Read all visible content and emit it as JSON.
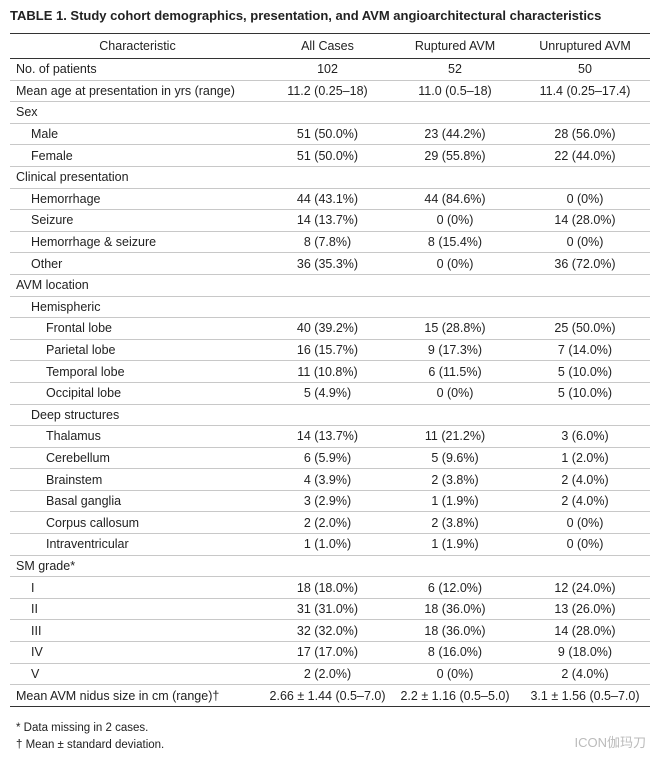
{
  "title": "TABLE 1. Study cohort demographics, presentation, and AVM angioarchitectural characteristics",
  "table": {
    "columns": [
      "Characteristic",
      "All Cases",
      "Ruptured AVM",
      "Unruptured AVM"
    ],
    "rows": [
      [
        "No. of patients",
        "102",
        "52",
        "50"
      ],
      [
        "Mean age at presentation in yrs (range)",
        "11.2 (0.25–18)",
        "11.0 (0.5–18)",
        "11.4 (0.25–17.4)"
      ],
      [
        "Sex"
      ],
      [
        "Male",
        "51 (50.0%)",
        "23 (44.2%)",
        "28 (56.0%)"
      ],
      [
        "Female",
        "51 (50.0%)",
        "29 (55.8%)",
        "22 (44.0%)"
      ],
      [
        "Clinical presentation"
      ],
      [
        "Hemorrhage",
        "44 (43.1%)",
        "44 (84.6%)",
        "0 (0%)"
      ],
      [
        "Seizure",
        "14 (13.7%)",
        "0 (0%)",
        "14 (28.0%)"
      ],
      [
        "Hemorrhage & seizure",
        "8 (7.8%)",
        "8 (15.4%)",
        "0 (0%)"
      ],
      [
        "Other",
        "36 (35.3%)",
        "0 (0%)",
        "36 (72.0%)"
      ],
      [
        "AVM location"
      ],
      [
        "Hemispheric"
      ],
      [
        "Frontal lobe",
        "40 (39.2%)",
        "15 (28.8%)",
        "25 (50.0%)"
      ],
      [
        "Parietal lobe",
        "16 (15.7%)",
        "9 (17.3%)",
        "7 (14.0%)"
      ],
      [
        "Temporal lobe",
        "11 (10.8%)",
        "6 (11.5%)",
        "5 (10.0%)"
      ],
      [
        "Occipital lobe",
        "5 (4.9%)",
        "0 (0%)",
        "5 (10.0%)"
      ],
      [
        "Deep structures"
      ],
      [
        "Thalamus",
        "14 (13.7%)",
        "11 (21.2%)",
        "3 (6.0%)"
      ],
      [
        "Cerebellum",
        "6 (5.9%)",
        "5 (9.6%)",
        "1 (2.0%)"
      ],
      [
        "Brainstem",
        "4 (3.9%)",
        "2 (3.8%)",
        "2 (4.0%)"
      ],
      [
        "Basal ganglia",
        "3 (2.9%)",
        "1 (1.9%)",
        "2 (4.0%)"
      ],
      [
        "Corpus callosum",
        "2 (2.0%)",
        "2 (3.8%)",
        "0 (0%)"
      ],
      [
        "Intraventricular",
        "1 (1.0%)",
        "1 (1.9%)",
        "0 (0%)"
      ],
      [
        "SM grade*"
      ],
      [
        "I",
        "18 (18.0%)",
        "6 (12.0%)",
        "12 (24.0%)"
      ],
      [
        "II",
        "31 (31.0%)",
        "18 (36.0%)",
        "13 (26.0%)"
      ],
      [
        "III",
        "32 (32.0%)",
        "18 (36.0%)",
        "14 (28.0%)"
      ],
      [
        "IV",
        "17 (17.0%)",
        "8 (16.0%)",
        "9 (18.0%)"
      ],
      [
        "V",
        "2 (2.0%)",
        "0 (0%)",
        "2 (4.0%)"
      ],
      [
        "Mean AVM nidus size in cm (range)†",
        "2.66 ± 1.44 (0.5–7.0)",
        "2.2 ± 1.16 (0.5–5.0)",
        "3.1 ± 1.56 (0.5–7.0)"
      ]
    ]
  },
  "footnotes": [
    "* Data missing in 2 cases.",
    "† Mean ± standard deviation."
  ],
  "watermark": "ICON伽玛刀"
}
